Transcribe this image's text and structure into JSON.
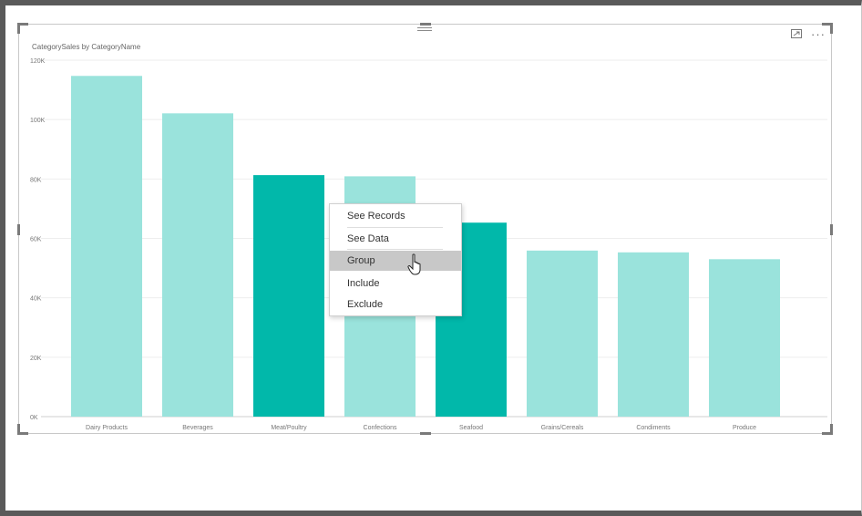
{
  "visual": {
    "title": "CategorySales by CategoryName",
    "focus_icon": "focus-mode-icon",
    "more_icon": "more-options-icon"
  },
  "colors": {
    "selected_bar": "#01b8aa",
    "faded_bar": "#9ae3dc",
    "gridline": "#eeeeee",
    "axis_text": "#777777"
  },
  "chart_data": {
    "type": "bar",
    "title": "CategorySales by CategoryName",
    "xlabel": "",
    "ylabel": "",
    "categories": [
      "Dairy Products",
      "Beverages",
      "Meat/Poultry",
      "Confections",
      "Seafood",
      "Grains/Cereals",
      "Condiments",
      "Produce"
    ],
    "values": [
      114700,
      102100,
      81300,
      80900,
      65300,
      55900,
      55300,
      53000
    ],
    "highlighted": [
      false,
      false,
      true,
      false,
      true,
      false,
      false,
      false
    ],
    "ylim": [
      0,
      120000
    ],
    "yticks": [
      0,
      20000,
      40000,
      60000,
      80000,
      100000,
      120000
    ],
    "ytick_labels": [
      "0K",
      "20K",
      "40K",
      "60K",
      "80K",
      "100K",
      "120K"
    ],
    "grid": true
  },
  "context_menu": {
    "items": [
      {
        "label": "See Records",
        "state": "normal"
      },
      {
        "label": "See Data",
        "state": "normal"
      },
      {
        "label": "Group",
        "state": "hover"
      },
      {
        "label": "Include",
        "state": "normal"
      },
      {
        "label": "Exclude",
        "state": "normal"
      }
    ]
  },
  "cursor": "hand-pointer-icon"
}
